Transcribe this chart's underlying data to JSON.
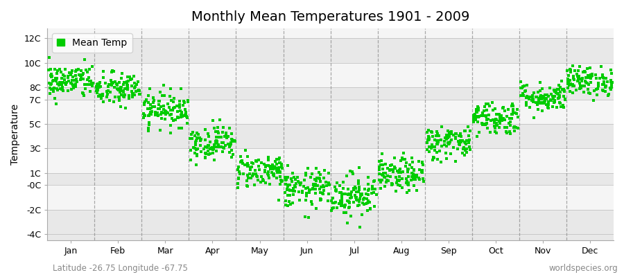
{
  "title": "Monthly Mean Temperatures 1901 - 2009",
  "ylabel": "Temperature",
  "subtitle_left": "Latitude -26.75 Longitude -67.75",
  "subtitle_right": "worldspecies.org",
  "ytick_labels": [
    "12C",
    "10C",
    "8C",
    "7C",
    "5C",
    "3C",
    "1C",
    "-0C",
    "-2C",
    "-4C"
  ],
  "ytick_values": [
    12,
    10,
    8,
    7,
    5,
    3,
    1,
    0,
    -2,
    -4
  ],
  "ylim": [
    -4.5,
    12.8
  ],
  "months": [
    "Jan",
    "Feb",
    "Mar",
    "Apr",
    "May",
    "Jun",
    "Jul",
    "Aug",
    "Sep",
    "Oct",
    "Nov",
    "Dec"
  ],
  "month_means": [
    8.5,
    7.8,
    6.2,
    3.5,
    1.2,
    -0.3,
    -0.8,
    0.8,
    3.5,
    5.5,
    7.2,
    8.5
  ],
  "month_stds": [
    0.7,
    0.7,
    0.7,
    0.7,
    0.7,
    0.8,
    0.9,
    0.7,
    0.7,
    0.7,
    0.6,
    0.6
  ],
  "n_years": 109,
  "marker_color": "#00CC00",
  "marker_size": 9,
  "bg_color": "#ffffff",
  "band_colors_even": "#e8e8e8",
  "band_colors_odd": "#f5f5f5",
  "dashed_line_color": "#888888",
  "legend_box_color": "#00CC00",
  "title_fontsize": 14,
  "axis_fontsize": 10,
  "tick_fontsize": 9,
  "subtitle_fontsize": 8.5
}
